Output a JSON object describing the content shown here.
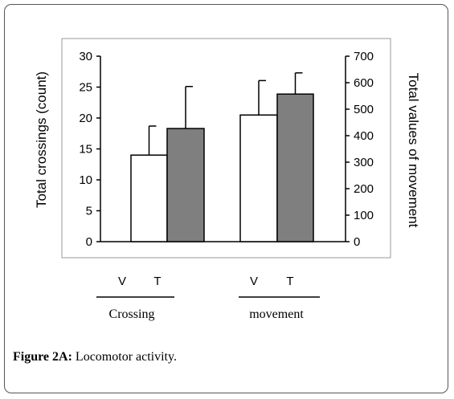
{
  "chart_data": {
    "type": "bar",
    "categories": [
      "Crossing",
      "movement"
    ],
    "bar_labels": [
      "V",
      "T"
    ],
    "series": [
      {
        "values_left_axis": [
          14,
          18.3
        ],
        "errors_left_axis": [
          4.7,
          6.8
        ],
        "color": "#ffffff",
        "stroke": "#000000"
      },
      {
        "values_right_axis": [
          478,
          557
        ],
        "errors_right_axis": [
          130,
          80
        ],
        "color": "#7f7f7f",
        "stroke": "#000000"
      }
    ],
    "bars": [
      {
        "group": "Crossing",
        "label": "V",
        "axis": "left",
        "value": 14,
        "error": 4.7,
        "fill": "#ffffff"
      },
      {
        "group": "Crossing",
        "label": "T",
        "axis": "left",
        "value": 18.3,
        "error": 6.8,
        "fill": "#7f7f7f"
      },
      {
        "group": "movement",
        "label": "V",
        "axis": "right",
        "value": 478,
        "error": 130,
        "fill": "#ffffff"
      },
      {
        "group": "movement",
        "label": "T",
        "axis": "right",
        "value": 557,
        "error": 80,
        "fill": "#7f7f7f"
      }
    ],
    "ylabel": "Total crossings (count)",
    "ylim": [
      0,
      30
    ],
    "yticks": [
      0,
      5,
      10,
      15,
      20,
      25,
      30
    ],
    "y2label": "Total values of movement",
    "y2lim": [
      0,
      700
    ],
    "y2ticks": [
      0,
      100,
      200,
      300,
      400,
      500,
      600,
      700
    ],
    "grid": false,
    "legend": "none"
  },
  "caption": {
    "label": "Figure 2A:",
    "text": " Locomotor activity."
  }
}
